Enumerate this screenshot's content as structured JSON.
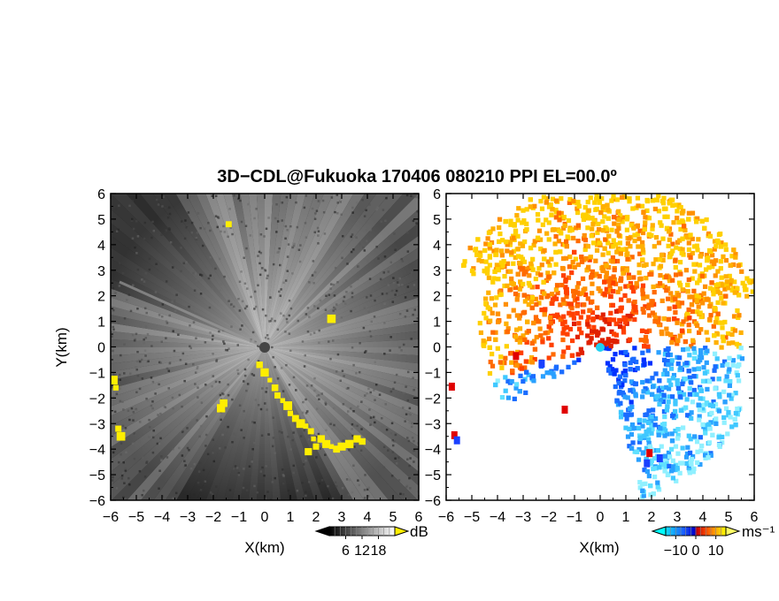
{
  "title": "3D−CDL@Fukuoka 170406 080210 PPI EL=00.0º",
  "colors": {
    "background": "#ffffff",
    "panel_left_bg": "#1a1a1a",
    "echo_highlight": "#ffee00",
    "velocity_negative": "#1a5cff",
    "velocity_positive": "#ff5a00"
  },
  "chart_data": [
    {
      "type": "heatmap",
      "panel": "left",
      "xlabel": "X(km)",
      "ylabel": "Y(km)",
      "xlim": [
        -6,
        6
      ],
      "ylim": [
        -6,
        6
      ],
      "xticks": [
        "−6",
        "−5",
        "−4",
        "−3",
        "−2",
        "−1",
        "0",
        "1",
        "2",
        "3",
        "4",
        "5",
        "6"
      ],
      "yticks": [
        "6",
        "5",
        "4",
        "3",
        "2",
        "1",
        "0",
        "−1",
        "−2",
        "−3",
        "−4",
        "−5",
        "−6"
      ],
      "colorbar": {
        "unit": "dB",
        "ticks": [
          "6",
          "12",
          "18"
        ],
        "tick_values": [
          6,
          12,
          18
        ],
        "range": [
          0,
          24
        ],
        "colors": [
          "#000000",
          "#ffffff"
        ],
        "triangle_colors": [
          "#000000",
          "#ffee00"
        ]
      },
      "highlight_color": "#ffee00"
    },
    {
      "type": "heatmap",
      "panel": "right",
      "xlabel": "X(km)",
      "xlim": [
        -6,
        6
      ],
      "ylim": [
        -6,
        6
      ],
      "xticks": [
        "−6",
        "−5",
        "−4",
        "−3",
        "−2",
        "−1",
        "0",
        "1",
        "2",
        "3",
        "4",
        "5",
        "6"
      ],
      "yticks": [
        "6",
        "5",
        "4",
        "3",
        "2",
        "1",
        "0",
        "−1",
        "−2",
        "−3",
        "−4",
        "−5",
        "−6"
      ],
      "colorbar": {
        "unit": "ms⁻¹",
        "ticks": [
          "−10",
          "0",
          "10"
        ],
        "tick_values": [
          -10,
          0,
          10
        ],
        "range": [
          -15,
          15
        ],
        "colors": [
          "#10e0ff",
          "#1a5cff",
          "#0000c8",
          "#c80000",
          "#ff5a00",
          "#ffb000",
          "#ffff00"
        ],
        "triangle_colors": [
          "#00ffff",
          "#ffff66"
        ]
      }
    }
  ]
}
